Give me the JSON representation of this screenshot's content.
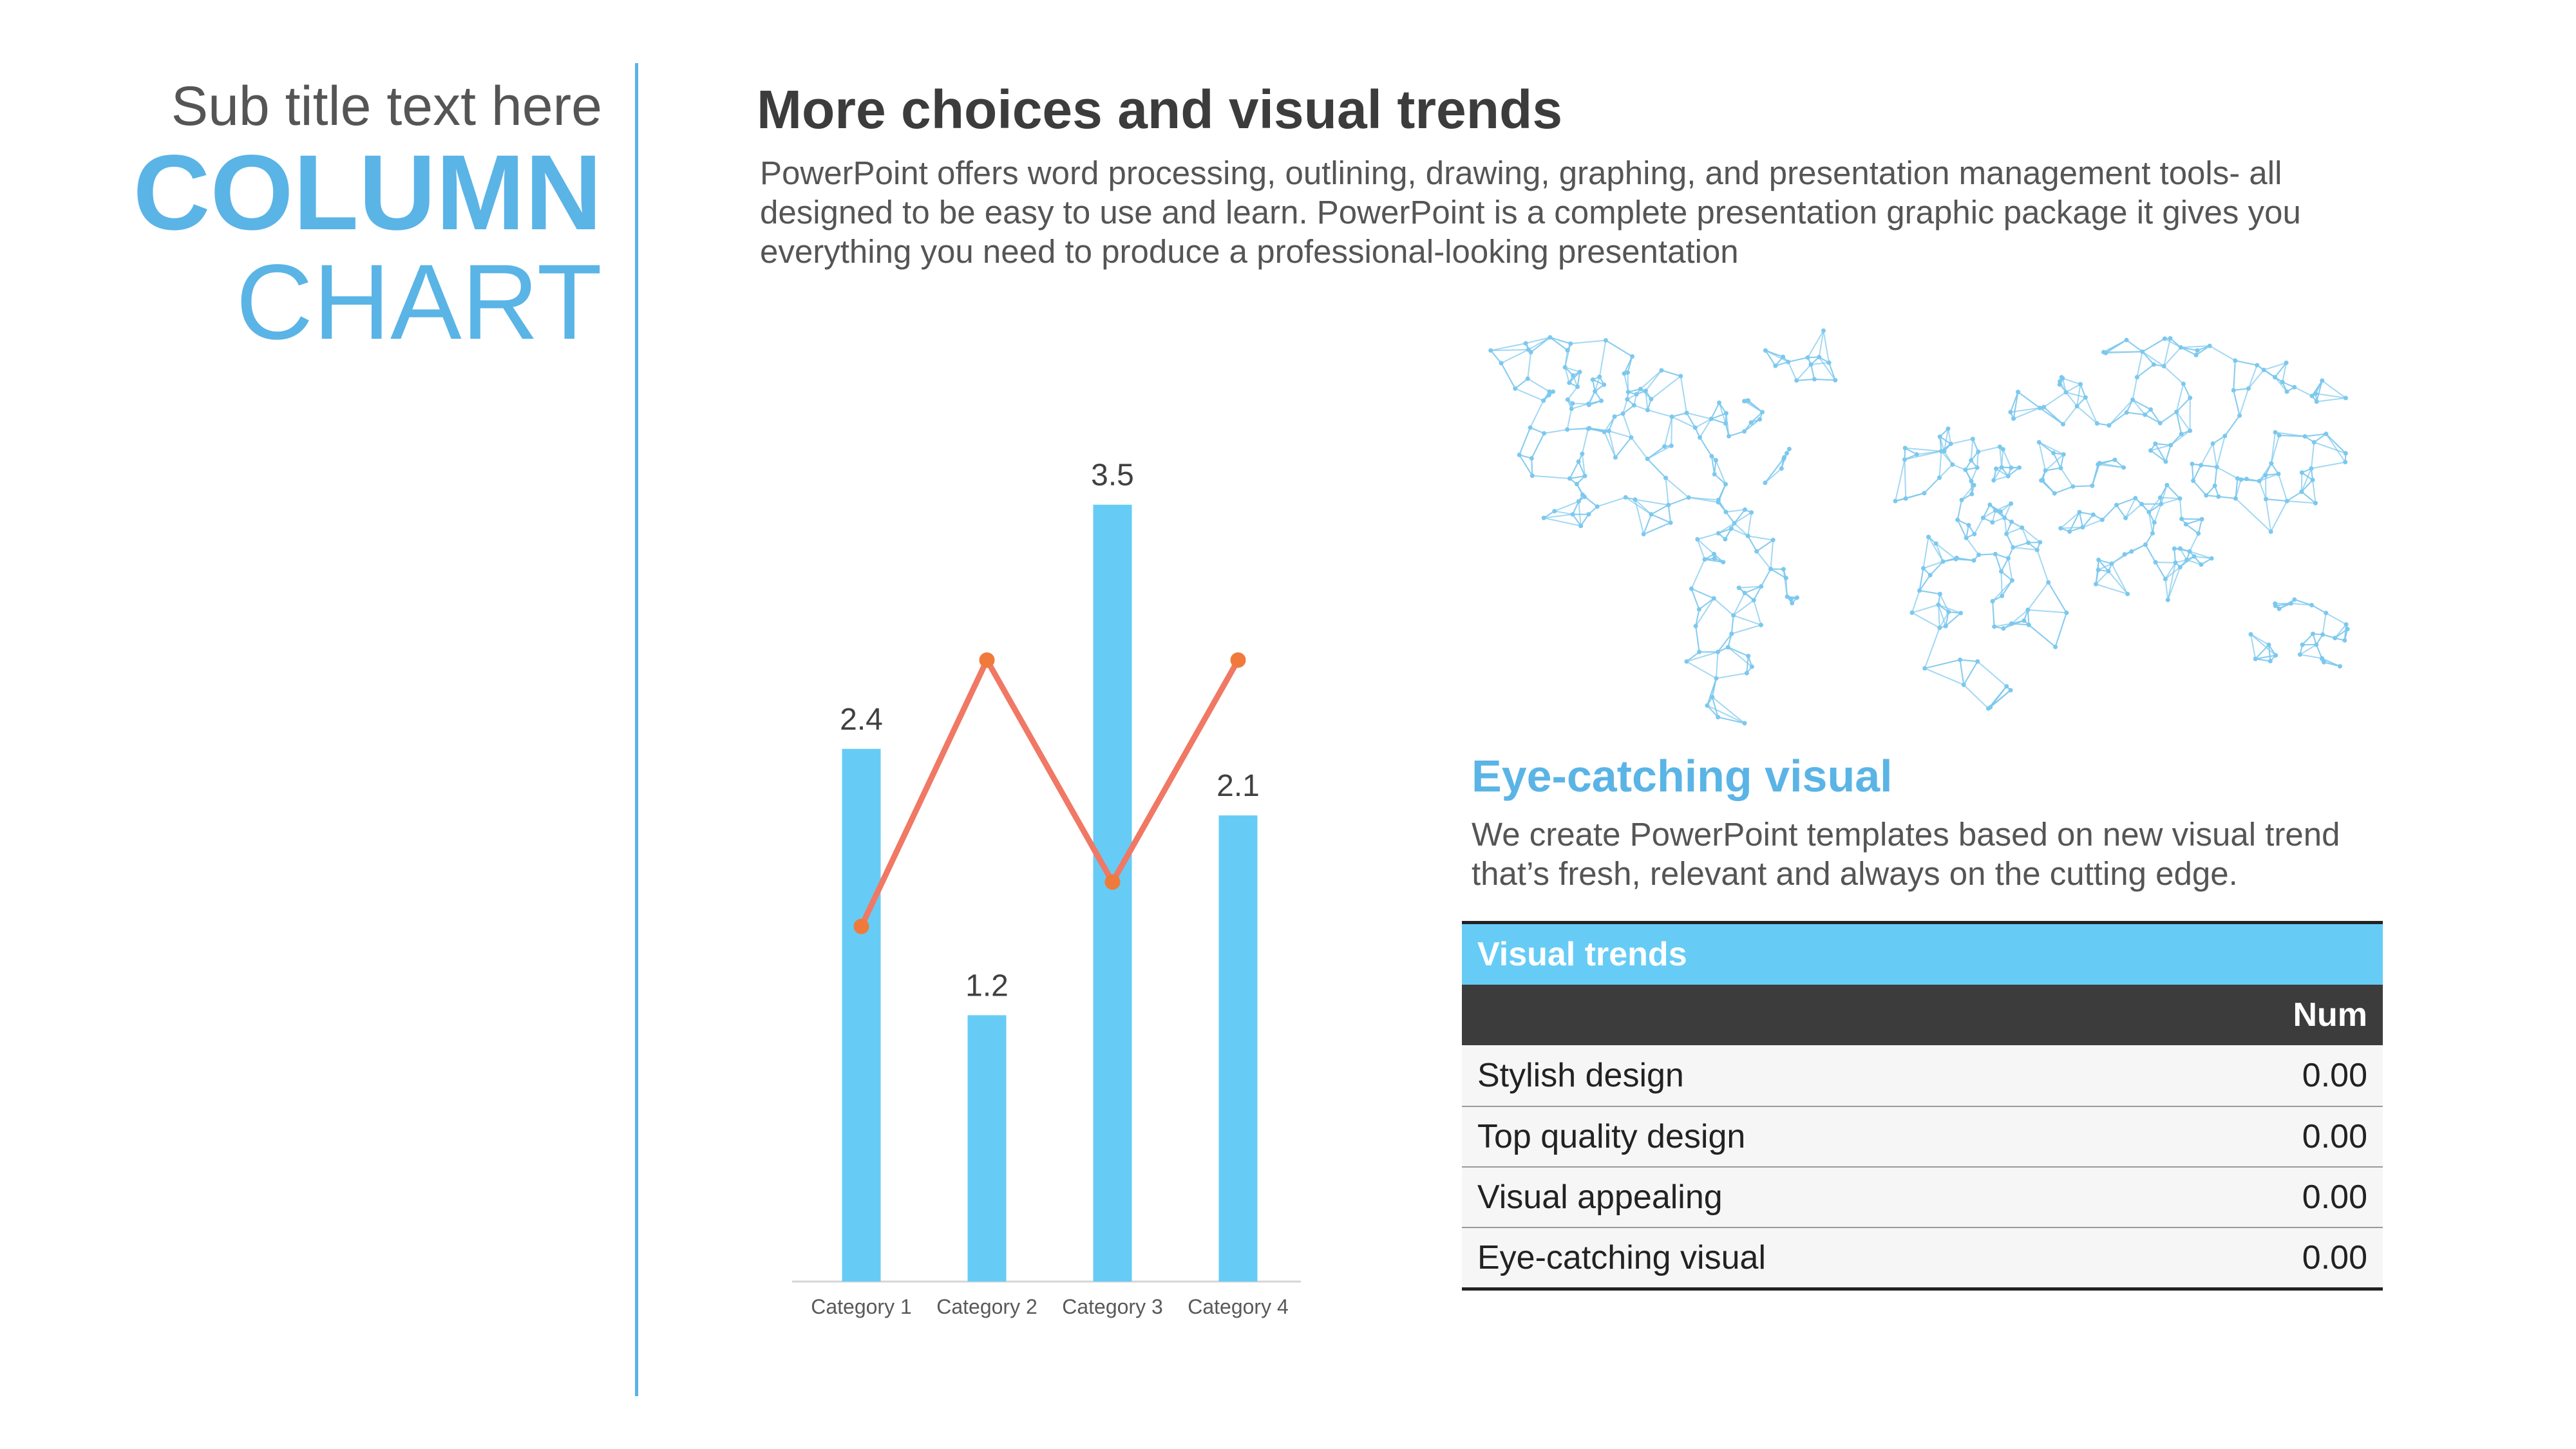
{
  "slide": {
    "subtitle": "Sub title text here",
    "title_bold": "COLUMN",
    "title_light": "CHART",
    "heading": "More choices and visual trends",
    "body": "PowerPoint offers word processing, outlining, drawing, graphing, and presentation management tools- all designed to be easy to use and learn. PowerPoint is a complete presentation graphic package it gives you everything you need to produce a professional-looking presentation",
    "accent_color": "#5ab4e6"
  },
  "eye_catching": {
    "title": "Eye-catching visual",
    "body": "We create PowerPoint templates based on new visual trend that’s fresh, relevant and always on the cutting edge."
  },
  "table": {
    "title": "Visual trends",
    "num_header": "Num",
    "rows": [
      {
        "label": "Stylish design",
        "value": "0.00"
      },
      {
        "label": "Top quality design",
        "value": "0.00"
      },
      {
        "label": "Visual appealing",
        "value": "0.00"
      },
      {
        "label": "Eye-catching visual",
        "value": "0.00"
      }
    ]
  },
  "map": {
    "icon": "world-map-network-icon",
    "color": "#7cc8ee"
  },
  "chart_data": {
    "type": "bar",
    "categories": [
      "Category 1",
      "Category 2",
      "Category 3",
      "Category 4"
    ],
    "series": [
      {
        "values": [
          2.4,
          1.2,
          3.5,
          2.1
        ],
        "color": "#66ccf5",
        "render": "bar",
        "labels": [
          "2.4",
          "1.2",
          "3.5",
          "2.1"
        ]
      },
      {
        "values": [
          1.6,
          2.8,
          1.8,
          2.8
        ],
        "color": "#f07864",
        "render": "line",
        "marker_color": "#ef7a3c"
      }
    ],
    "ylim": [
      0,
      4.12
    ],
    "grid": false,
    "legend": "none"
  }
}
